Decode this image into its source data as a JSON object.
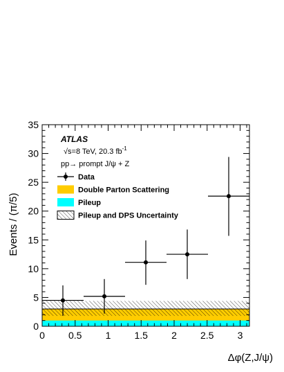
{
  "chart_data": {
    "type": "scatter",
    "experiment": "ATLAS",
    "energy_label": "√s=8 TeV, 20.3 fb",
    "energy_superscript": "-1",
    "process_label": "pp→ prompt J/ψ + Z",
    "xlabel": "Δφ(Z,J/ψ)",
    "ylabel": "Events / (π/5)",
    "xlim": [
      0,
      3.1416
    ],
    "ylim": [
      0,
      35
    ],
    "x_ticks": [
      0,
      0.5,
      1,
      1.5,
      2,
      2.5,
      3
    ],
    "x_tick_labels": [
      "0",
      "0.5",
      "1",
      "1.5",
      "2",
      "2.5",
      "3"
    ],
    "y_ticks": [
      0,
      5,
      10,
      15,
      20,
      25,
      30,
      35
    ],
    "y_tick_labels": [
      "0",
      "5",
      "10",
      "15",
      "20",
      "25",
      "30",
      "35"
    ],
    "bin_edges": [
      0,
      0.6283,
      1.2566,
      1.885,
      2.5133,
      3.1416
    ],
    "data": {
      "name": "Data",
      "x": [
        0.3142,
        0.9425,
        1.5708,
        2.1991,
        2.8274
      ],
      "y": [
        4.5,
        5.2,
        11.1,
        12.5,
        22.6
      ],
      "yerr_low": [
        2.7,
        3.0,
        3.9,
        4.3,
        6.9
      ],
      "yerr_high": [
        2.6,
        3.0,
        3.8,
        4.3,
        6.8
      ]
    },
    "pileup": {
      "name": "Pileup",
      "value": 1.0,
      "color": "#00ffff"
    },
    "dps": {
      "name": "Double Parton Scattering",
      "total": 3.0,
      "color": "#ffcc00"
    },
    "uncertainty": {
      "name": "Pileup and DPS Uncertainty",
      "low": 1.8,
      "high": 4.4
    },
    "legend": {
      "position": "top-left",
      "entries": [
        {
          "label": "Data",
          "kind": "marker"
        },
        {
          "label": "Double Parton Scattering",
          "kind": "fill",
          "color": "#ffcc00"
        },
        {
          "label": "Pileup",
          "kind": "fill",
          "color": "#00ffff"
        },
        {
          "label": "Pileup and DPS Uncertainty",
          "kind": "hatch"
        }
      ]
    }
  }
}
